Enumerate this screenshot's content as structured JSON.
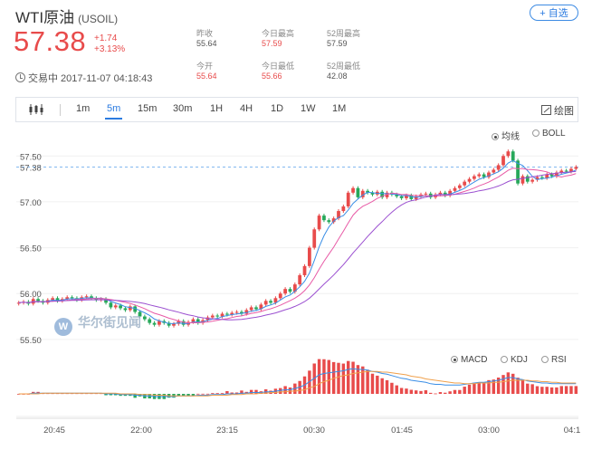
{
  "header": {
    "name": "WTI原油",
    "code": "(USOIL)",
    "watch_label": "+ 自选",
    "price": "57.38",
    "change": "+1.74",
    "change_pct": "+3.13%",
    "status": "交易中 2017-11-07 04:18:43"
  },
  "stats": [
    {
      "label": "昨收",
      "value": "55.64",
      "color": "gray"
    },
    {
      "label": "今日最高",
      "value": "57.59",
      "color": "red"
    },
    {
      "label": "52周最高",
      "value": "57.59",
      "color": "gray"
    },
    {
      "label": "今开",
      "value": "55.64",
      "color": "red"
    },
    {
      "label": "今日最低",
      "value": "55.66",
      "color": "red"
    },
    {
      "label": "52周最低",
      "value": "42.08",
      "color": "gray"
    }
  ],
  "toolbar": {
    "timeframes": [
      "1m",
      "5m",
      "15m",
      "30m",
      "1H",
      "4H",
      "1D",
      "1W",
      "1M"
    ],
    "active": "5m",
    "draw_label": "绘图"
  },
  "overlay_options": [
    {
      "label": "均线",
      "selected": true
    },
    {
      "label": "BOLL",
      "selected": false
    }
  ],
  "indicator_options": [
    {
      "label": "MACD",
      "selected": true
    },
    {
      "label": "KDJ",
      "selected": false
    },
    {
      "label": "RSI",
      "selected": false
    }
  ],
  "watermark": "华尔街见闻",
  "colors": {
    "up": "#e84b4b",
    "down": "#27a85a",
    "accent": "#2b7be0",
    "ma5": "#3a8ee6",
    "ma10": "#e85aa6",
    "ma20": "#9b4fd0"
  },
  "chart_data": {
    "type": "candlestick",
    "y_ticks": [
      "57.50",
      "57.00",
      "56.50",
      "56.00",
      "55.50"
    ],
    "y_range": [
      55.4,
      57.72
    ],
    "current_price_label": "57.38",
    "x_ticks": [
      "20:45",
      "22:00",
      "23:15",
      "00:30",
      "01:45",
      "03:00",
      "04:1"
    ],
    "closes": [
      55.9,
      55.91,
      55.89,
      55.94,
      55.92,
      55.9,
      55.93,
      55.95,
      55.92,
      55.94,
      55.96,
      55.95,
      55.93,
      55.96,
      55.97,
      55.95,
      55.93,
      55.94,
      55.9,
      55.85,
      55.87,
      55.84,
      55.82,
      55.86,
      55.8,
      55.75,
      55.72,
      55.68,
      55.66,
      55.7,
      55.68,
      55.65,
      55.67,
      55.7,
      55.66,
      55.69,
      55.72,
      55.68,
      55.71,
      55.74,
      55.76,
      55.75,
      55.78,
      55.77,
      55.79,
      55.8,
      55.78,
      55.82,
      55.85,
      55.83,
      55.88,
      55.92,
      55.9,
      55.95,
      56.0,
      56.05,
      56.02,
      56.1,
      56.2,
      56.3,
      56.5,
      56.7,
      56.85,
      56.8,
      56.78,
      56.82,
      56.9,
      56.95,
      57.1,
      57.15,
      57.05,
      57.12,
      57.1,
      57.08,
      57.11,
      57.05,
      57.1,
      57.08,
      57.06,
      57.04,
      57.07,
      57.03,
      57.06,
      57.08,
      57.09,
      57.05,
      57.08,
      57.1,
      57.07,
      57.12,
      57.15,
      57.18,
      57.22,
      57.25,
      57.28,
      57.3,
      57.27,
      57.32,
      57.35,
      57.4,
      57.5,
      57.55,
      57.45,
      57.2,
      57.28,
      57.22,
      57.24,
      57.27,
      57.26,
      57.3,
      57.28,
      57.32,
      57.34,
      57.33,
      57.36,
      57.38
    ],
    "macd_dif": [
      0.0,
      0.0,
      0.0,
      0.01,
      0.01,
      0.01,
      0.01,
      0.01,
      0.01,
      0.01,
      0.01,
      0.01,
      0.01,
      0.01,
      0.01,
      0.01,
      0.01,
      0.01,
      0.0,
      0.0,
      0.0,
      -0.01,
      -0.01,
      -0.01,
      -0.02,
      -0.02,
      -0.03,
      -0.03,
      -0.04,
      -0.04,
      -0.04,
      -0.04,
      -0.04,
      -0.03,
      -0.03,
      -0.03,
      -0.03,
      -0.02,
      -0.02,
      -0.02,
      -0.01,
      -0.01,
      -0.01,
      -0.0,
      0.0,
      0.0,
      0.01,
      0.01,
      0.02,
      0.02,
      0.02,
      0.03,
      0.03,
      0.04,
      0.05,
      0.06,
      0.06,
      0.08,
      0.1,
      0.13,
      0.18,
      0.23,
      0.28,
      0.3,
      0.31,
      0.32,
      0.33,
      0.34,
      0.36,
      0.37,
      0.36,
      0.36,
      0.35,
      0.33,
      0.32,
      0.3,
      0.29,
      0.27,
      0.25,
      0.23,
      0.22,
      0.2,
      0.19,
      0.18,
      0.17,
      0.15,
      0.14,
      0.14,
      0.13,
      0.13,
      0.13,
      0.13,
      0.14,
      0.15,
      0.16,
      0.17,
      0.17,
      0.18,
      0.19,
      0.2,
      0.22,
      0.24,
      0.24,
      0.22,
      0.21,
      0.19,
      0.18,
      0.17,
      0.16,
      0.16,
      0.15,
      0.15,
      0.15,
      0.15,
      0.15,
      0.15
    ],
    "macd_dea": [
      0.0,
      0.0,
      0.0,
      0.0,
      0.0,
      0.01,
      0.01,
      0.01,
      0.01,
      0.01,
      0.01,
      0.01,
      0.01,
      0.01,
      0.01,
      0.01,
      0.01,
      0.01,
      0.01,
      0.01,
      0.01,
      0.0,
      0.0,
      0.0,
      -0.0,
      -0.01,
      -0.01,
      -0.01,
      -0.02,
      -0.02,
      -0.02,
      -0.03,
      -0.03,
      -0.03,
      -0.03,
      -0.03,
      -0.03,
      -0.03,
      -0.03,
      -0.03,
      -0.02,
      -0.02,
      -0.02,
      -0.02,
      -0.01,
      -0.01,
      -0.01,
      -0.0,
      0.0,
      0.0,
      0.01,
      0.01,
      0.02,
      0.02,
      0.03,
      0.03,
      0.04,
      0.04,
      0.05,
      0.06,
      0.09,
      0.11,
      0.15,
      0.18,
      0.2,
      0.23,
      0.25,
      0.27,
      0.28,
      0.3,
      0.31,
      0.32,
      0.33,
      0.33,
      0.33,
      0.32,
      0.32,
      0.31,
      0.3,
      0.29,
      0.28,
      0.26,
      0.25,
      0.24,
      0.22,
      0.21,
      0.2,
      0.19,
      0.18,
      0.17,
      0.16,
      0.16,
      0.15,
      0.15,
      0.15,
      0.16,
      0.16,
      0.16,
      0.17,
      0.17,
      0.18,
      0.19,
      0.2,
      0.2,
      0.2,
      0.2,
      0.19,
      0.19,
      0.18,
      0.18,
      0.17,
      0.17,
      0.16,
      0.16,
      0.16,
      0.16
    ]
  }
}
